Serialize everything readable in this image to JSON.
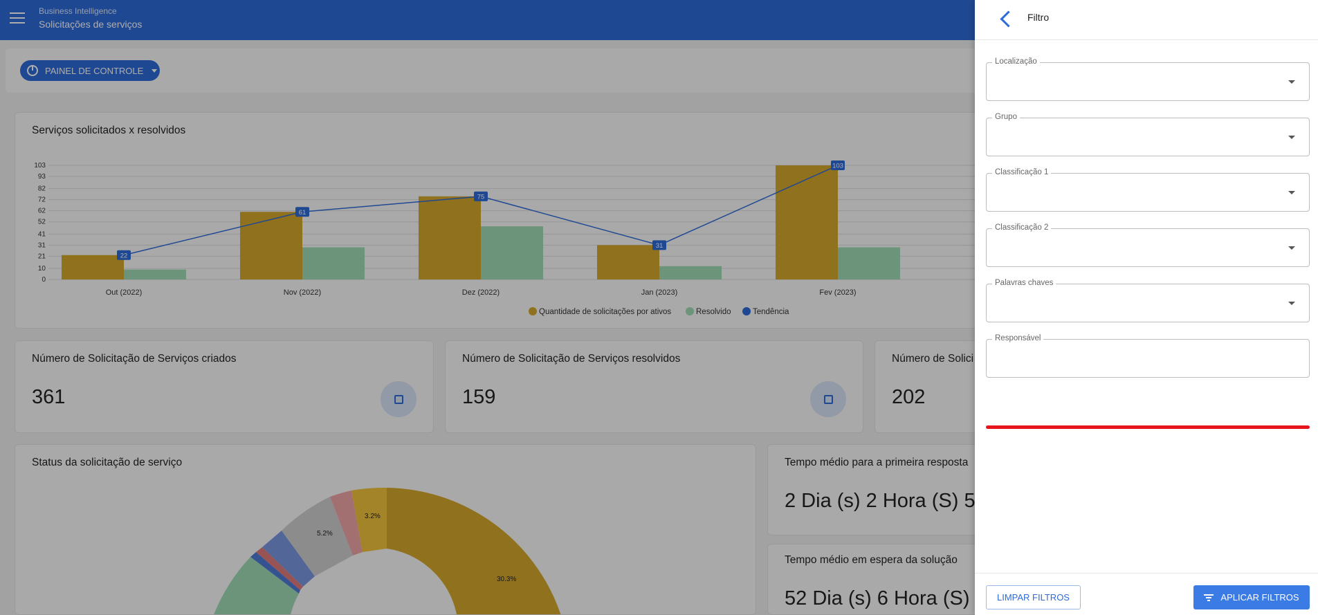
{
  "header": {
    "subtitle": "Business Intelligence",
    "title": "Solicitações de serviços"
  },
  "panel_button": {
    "label": "PAINEL DE CONTROLE"
  },
  "chart_card": {
    "title": "Serviços solicitados x resolvidos"
  },
  "chart_data": {
    "type": "bar",
    "title": "Serviços solicitados x resolvidos",
    "categories": [
      "Out (2022)",
      "Nov (2022)",
      "Dez (2022)",
      "Jan (2023)",
      "Fev (2023)"
    ],
    "series": [
      {
        "name": "Quantidade de solicitações por ativos",
        "values": [
          22,
          61,
          75,
          31,
          103
        ],
        "color": "#d4a72c"
      },
      {
        "name": "Resolvido",
        "values": [
          9,
          29,
          48,
          12,
          29
        ],
        "color": "#9fdbb5"
      },
      {
        "name": "Tendência",
        "type": "line",
        "values": [
          22,
          61,
          75,
          31,
          103
        ],
        "color": "#2f6bd8"
      }
    ],
    "y_ticks": [
      "0",
      "10",
      "21",
      "31",
      "41",
      "52",
      "62",
      "72",
      "82",
      "93",
      "103"
    ],
    "ylim": [
      0,
      103
    ],
    "grid": true,
    "legend": "bottom"
  },
  "stats": [
    {
      "label": "Número de Solicitação de Serviços criados",
      "value": "361"
    },
    {
      "label": "Número de Solicitação de Serviços resolvidos",
      "value": "159"
    },
    {
      "label": "Número de Solici",
      "value": "202"
    }
  ],
  "status_card": {
    "title": "Status da solicitação de serviço",
    "slice_labels": [
      "5.2%",
      "3.2%",
      "30.3%"
    ]
  },
  "time_cards": [
    {
      "label": "Tempo médio para a primeira resposta",
      "value": "2 Dia (s) 2 Hora (S) 5"
    },
    {
      "label": "Tempo médio em espera da solução",
      "value": "52 Dia (s) 6 Hora (S)"
    }
  ],
  "drawer": {
    "title": "Filtro",
    "fields": [
      {
        "label": "Localização"
      },
      {
        "label": "Grupo"
      },
      {
        "label": "Classificação 1"
      },
      {
        "label": "Classificação 2"
      },
      {
        "label": "Palavras chaves"
      },
      {
        "label": "Responsável"
      }
    ],
    "clear_label": "LIMPAR FILTROS",
    "apply_label": "APLICAR FILTROS"
  },
  "icons": [
    "menu-icon",
    "chart-pie-icon",
    "chevron-down-icon",
    "back-arrow-icon",
    "filter-icon",
    "add-box-icon",
    "check-box-icon"
  ]
}
